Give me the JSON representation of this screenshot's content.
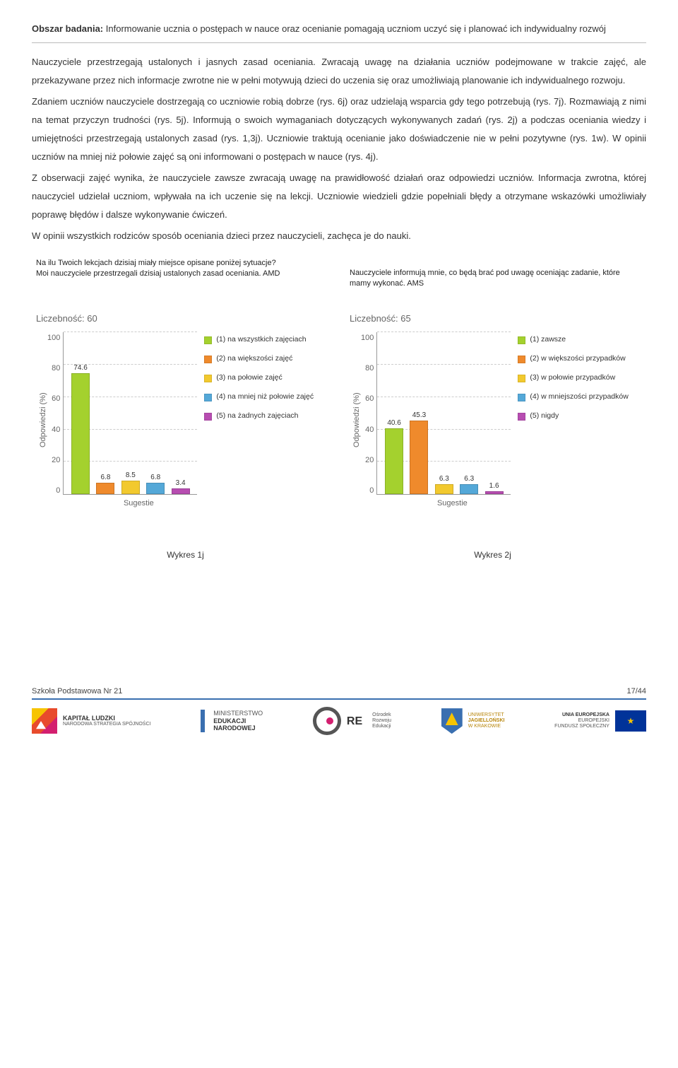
{
  "section": {
    "label": "Obszar badania:",
    "title": "Informowanie ucznia o postępach w nauce oraz ocenianie pomagają uczniom uczyć się i planować ich indywidualny rozwój"
  },
  "paragraphs": {
    "p1": "Nauczyciele przestrzegają ustalonych i jasnych zasad oceniania. Zwracają uwagę na działania uczniów podejmowane w trakcie zajęć, ale przekazywane przez nich informacje zwrotne nie w pełni motywują dzieci do uczenia się oraz umożliwiają planowanie ich indywidualnego rozwoju.",
    "p2": "Zdaniem uczniów nauczyciele dostrzegają co uczniowie robią dobrze (rys. 6j) oraz udzielają wsparcia gdy tego potrzebują (rys. 7j). Rozmawiają z nimi na temat przyczyn trudności (rys. 5j). Informują o swoich wymaganiach dotyczących wykonywanych zadań (rys. 2j) a podczas oceniania wiedzy i umiejętności przestrzegają ustalonych zasad (rys. 1,3j). Uczniowie traktują ocenianie jako doświadczenie nie w pełni pozytywne (rys. 1w). W opinii uczniów na mniej niż połowie zajęć są oni informowani o postępach w nauce (rys. 4j).",
    "p3": "Z obserwacji zajęć wynika, że nauczyciele zawsze zwracają uwagę na prawidłowość działań oraz odpowiedzi uczniów. Informacja zwrotna, której nauczyciel udzielał uczniom, wpływała na ich uczenie się na lekcji. Uczniowie wiedzieli gdzie popełniali błędy a otrzymane wskazówki umożliwiały poprawę błędów i dalsze wykonywanie ćwiczeń.",
    "p4": "W opinii wszystkich rodziców sposób oceniania dzieci przez nauczycieli, zachęca je do nauki."
  },
  "chart1": {
    "question": "Na ilu Twoich lekcjach dzisiaj miały miejsce opisane poniżej sytuacje?\nMoi nauczyciele przestrzegali dzisiaj ustalonych zasad oceniania. AMD",
    "count_label": "Liczebność: 60",
    "y_label": "Odpowiedzi (%)",
    "x_label": "Sugestie",
    "ylim": 100,
    "yticks": [
      "100",
      "80",
      "60",
      "40",
      "20",
      "0"
    ],
    "bars": [
      {
        "value": 74.6,
        "label": "74.6",
        "color": "#a4d12e"
      },
      {
        "value": 6.8,
        "label": "6.8",
        "color": "#ef8a2c"
      },
      {
        "value": 8.5,
        "label": "8.5",
        "color": "#f2c92e"
      },
      {
        "value": 6.8,
        "label": "6.8",
        "color": "#54a8d8"
      },
      {
        "value": 3.4,
        "label": "3.4",
        "color": "#b74db1"
      }
    ],
    "legend": [
      {
        "color": "#a4d12e",
        "text": "(1) na wszystkich zajęciach"
      },
      {
        "color": "#ef8a2c",
        "text": "(2) na większości zajęć"
      },
      {
        "color": "#f2c92e",
        "text": "(3) na połowie zajęć"
      },
      {
        "color": "#54a8d8",
        "text": "(4) na mniej niż połowie zajęć"
      },
      {
        "color": "#b74db1",
        "text": "(5) na żadnych zajęciach"
      }
    ]
  },
  "chart2": {
    "question": "Nauczyciele informują mnie, co będą brać pod uwagę oceniając zadanie, które mamy wykonać. AMS",
    "count_label": "Liczebność: 65",
    "y_label": "Odpowiedzi (%)",
    "x_label": "Sugestie",
    "ylim": 100,
    "yticks": [
      "100",
      "80",
      "60",
      "40",
      "20",
      "0"
    ],
    "bars": [
      {
        "value": 40.6,
        "label": "40.6",
        "color": "#a4d12e"
      },
      {
        "value": 45.3,
        "label": "45.3",
        "color": "#ef8a2c"
      },
      {
        "value": 6.3,
        "label": "6.3",
        "color": "#f2c92e"
      },
      {
        "value": 6.3,
        "label": "6.3",
        "color": "#54a8d8"
      },
      {
        "value": 1.6,
        "label": "1.6",
        "color": "#b74db1"
      }
    ],
    "legend": [
      {
        "color": "#a4d12e",
        "text": "(1) zawsze"
      },
      {
        "color": "#ef8a2c",
        "text": "(2) w większości przypadków"
      },
      {
        "color": "#f2c92e",
        "text": "(3) w połowie przypadków"
      },
      {
        "color": "#54a8d8",
        "text": "(4) w mniejszości przypadków"
      },
      {
        "color": "#b74db1",
        "text": "(5) nigdy"
      }
    ]
  },
  "captions": {
    "c1": "Wykres 1j",
    "c2": "Wykres 2j"
  },
  "footer": {
    "school": "Szkoła Podstawowa Nr 21",
    "page": "17/44",
    "logos": {
      "kapital1": "KAPITAŁ LUDZKI",
      "kapital2": "NARODOWA STRATEGIA SPÓJNOŚCI",
      "men1": "MINISTERSTWO",
      "men2": "EDUKACJI",
      "men3": "NARODOWEJ",
      "ore_brand": "RE",
      "ore1": "Ośrodek",
      "ore2": "Rozwoju",
      "ore3": "Edukacji",
      "uj1": "UNIWERSYTET",
      "uj2": "JAGIELLOŃSKI",
      "uj3": "W KRAKOWIE",
      "eu1": "UNIA EUROPEJSKA",
      "eu2": "EUROPEJSKI",
      "eu3": "FUNDUSZ SPOŁECZNY"
    }
  }
}
